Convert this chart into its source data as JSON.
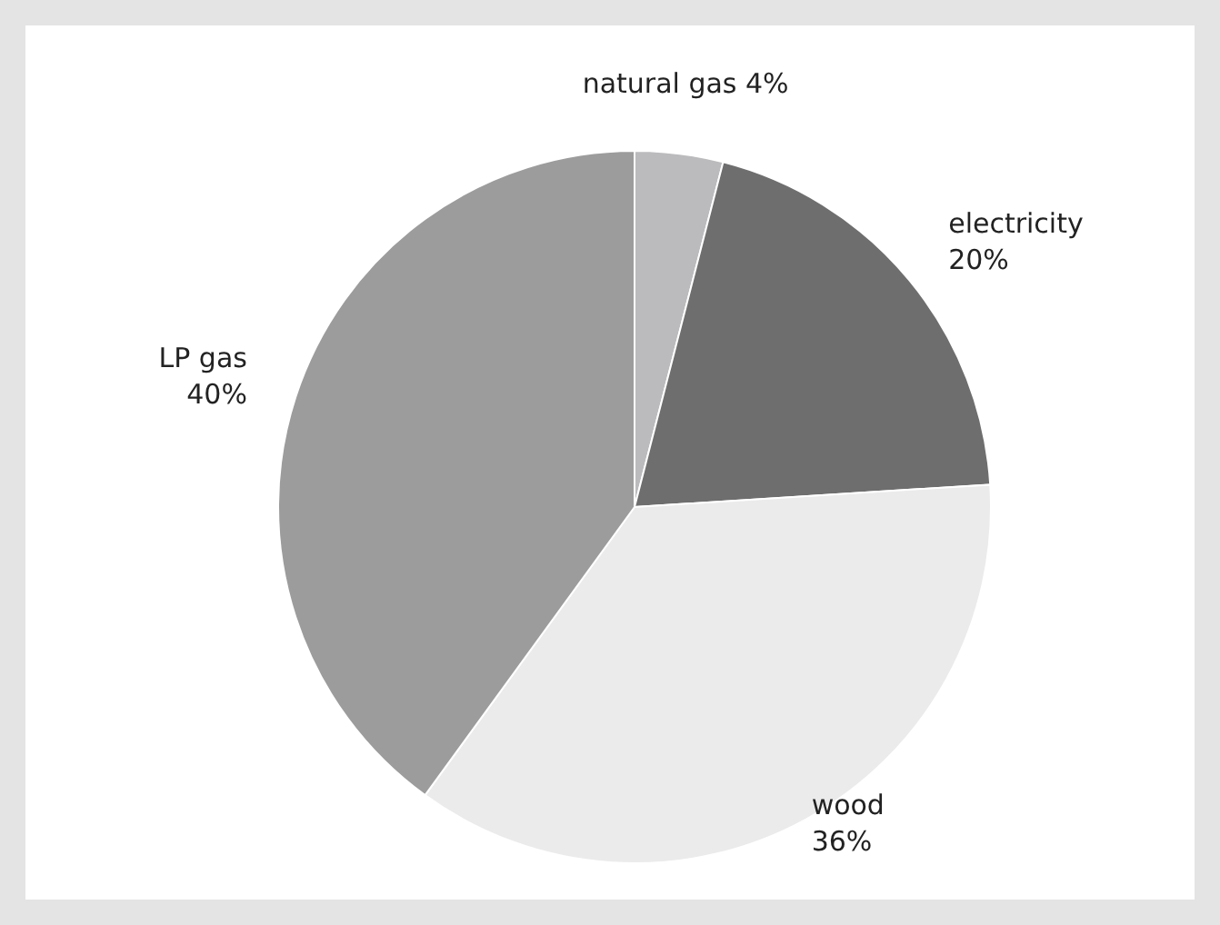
{
  "chart_data": {
    "type": "pie",
    "categories": [
      "natural gas",
      "electricity",
      "wood",
      "LP gas"
    ],
    "values": [
      4,
      20,
      36,
      40
    ],
    "colors": [
      "#bbbbbd",
      "#6e6e6e",
      "#ebebeb",
      "#9c9c9c"
    ],
    "value_labels": [
      "4%",
      "20%",
      "36%",
      "40%"
    ]
  }
}
